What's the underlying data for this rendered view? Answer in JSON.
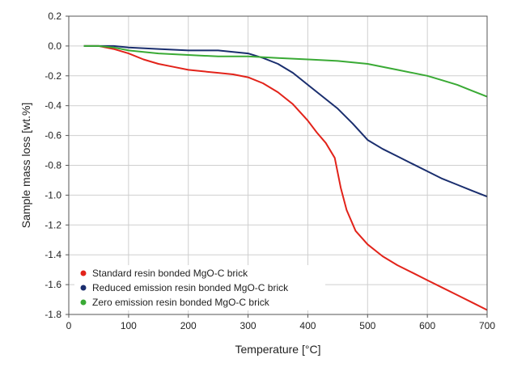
{
  "chart_data": {
    "type": "line",
    "xlabel": "Temperature [°C]",
    "ylabel": "Sample mass loss [wt.%]",
    "xlim": [
      0,
      700
    ],
    "ylim": [
      -1.8,
      0.2
    ],
    "x_ticks": [
      "0",
      "100",
      "200",
      "300",
      "400",
      "500",
      "600",
      "700"
    ],
    "y_ticks": [
      "0.2",
      "0.0",
      "-0.2",
      "-0.4",
      "-0.6",
      "-0.8",
      "-1.0",
      "-1.2",
      "-1.4",
      "-1.6",
      "-1.8"
    ],
    "grid": true,
    "legend_position": "bottom-left",
    "series": [
      {
        "name": "Standard resin bonded MgO-C brick",
        "color": "#e2231a",
        "x": [
          25,
          50,
          75,
          100,
          125,
          150,
          175,
          200,
          225,
          250,
          275,
          300,
          325,
          350,
          375,
          400,
          415,
          430,
          445,
          455,
          465,
          480,
          500,
          525,
          550,
          575,
          600,
          625,
          650,
          675,
          700
        ],
        "y": [
          0.0,
          0.0,
          -0.02,
          -0.05,
          -0.09,
          -0.12,
          -0.14,
          -0.16,
          -0.17,
          -0.18,
          -0.19,
          -0.21,
          -0.25,
          -0.31,
          -0.39,
          -0.5,
          -0.58,
          -0.65,
          -0.75,
          -0.95,
          -1.1,
          -1.24,
          -1.33,
          -1.41,
          -1.47,
          -1.52,
          -1.57,
          -1.62,
          -1.67,
          -1.72,
          -1.77
        ]
      },
      {
        "name": "Reduced emission resin bonded MgO-C brick",
        "color": "#1a2e6e",
        "x": [
          25,
          50,
          75,
          100,
          150,
          200,
          250,
          300,
          325,
          350,
          375,
          400,
          425,
          450,
          475,
          500,
          525,
          550,
          575,
          600,
          625,
          650,
          675,
          700
        ],
        "y": [
          0.0,
          0.0,
          0.0,
          -0.01,
          -0.02,
          -0.03,
          -0.03,
          -0.05,
          -0.08,
          -0.12,
          -0.18,
          -0.26,
          -0.34,
          -0.42,
          -0.52,
          -0.63,
          -0.69,
          -0.74,
          -0.79,
          -0.84,
          -0.89,
          -0.93,
          -0.97,
          -1.01
        ]
      },
      {
        "name": "Zero emission resin bonded MgO-C brick",
        "color": "#3aaa35",
        "x": [
          25,
          50,
          75,
          100,
          150,
          200,
          250,
          300,
          350,
          400,
          450,
          500,
          550,
          600,
          625,
          650,
          675,
          700
        ],
        "y": [
          0.0,
          0.0,
          -0.01,
          -0.03,
          -0.05,
          -0.06,
          -0.07,
          -0.07,
          -0.08,
          -0.09,
          -0.1,
          -0.12,
          -0.16,
          -0.2,
          -0.23,
          -0.26,
          -0.3,
          -0.34
        ]
      }
    ]
  }
}
